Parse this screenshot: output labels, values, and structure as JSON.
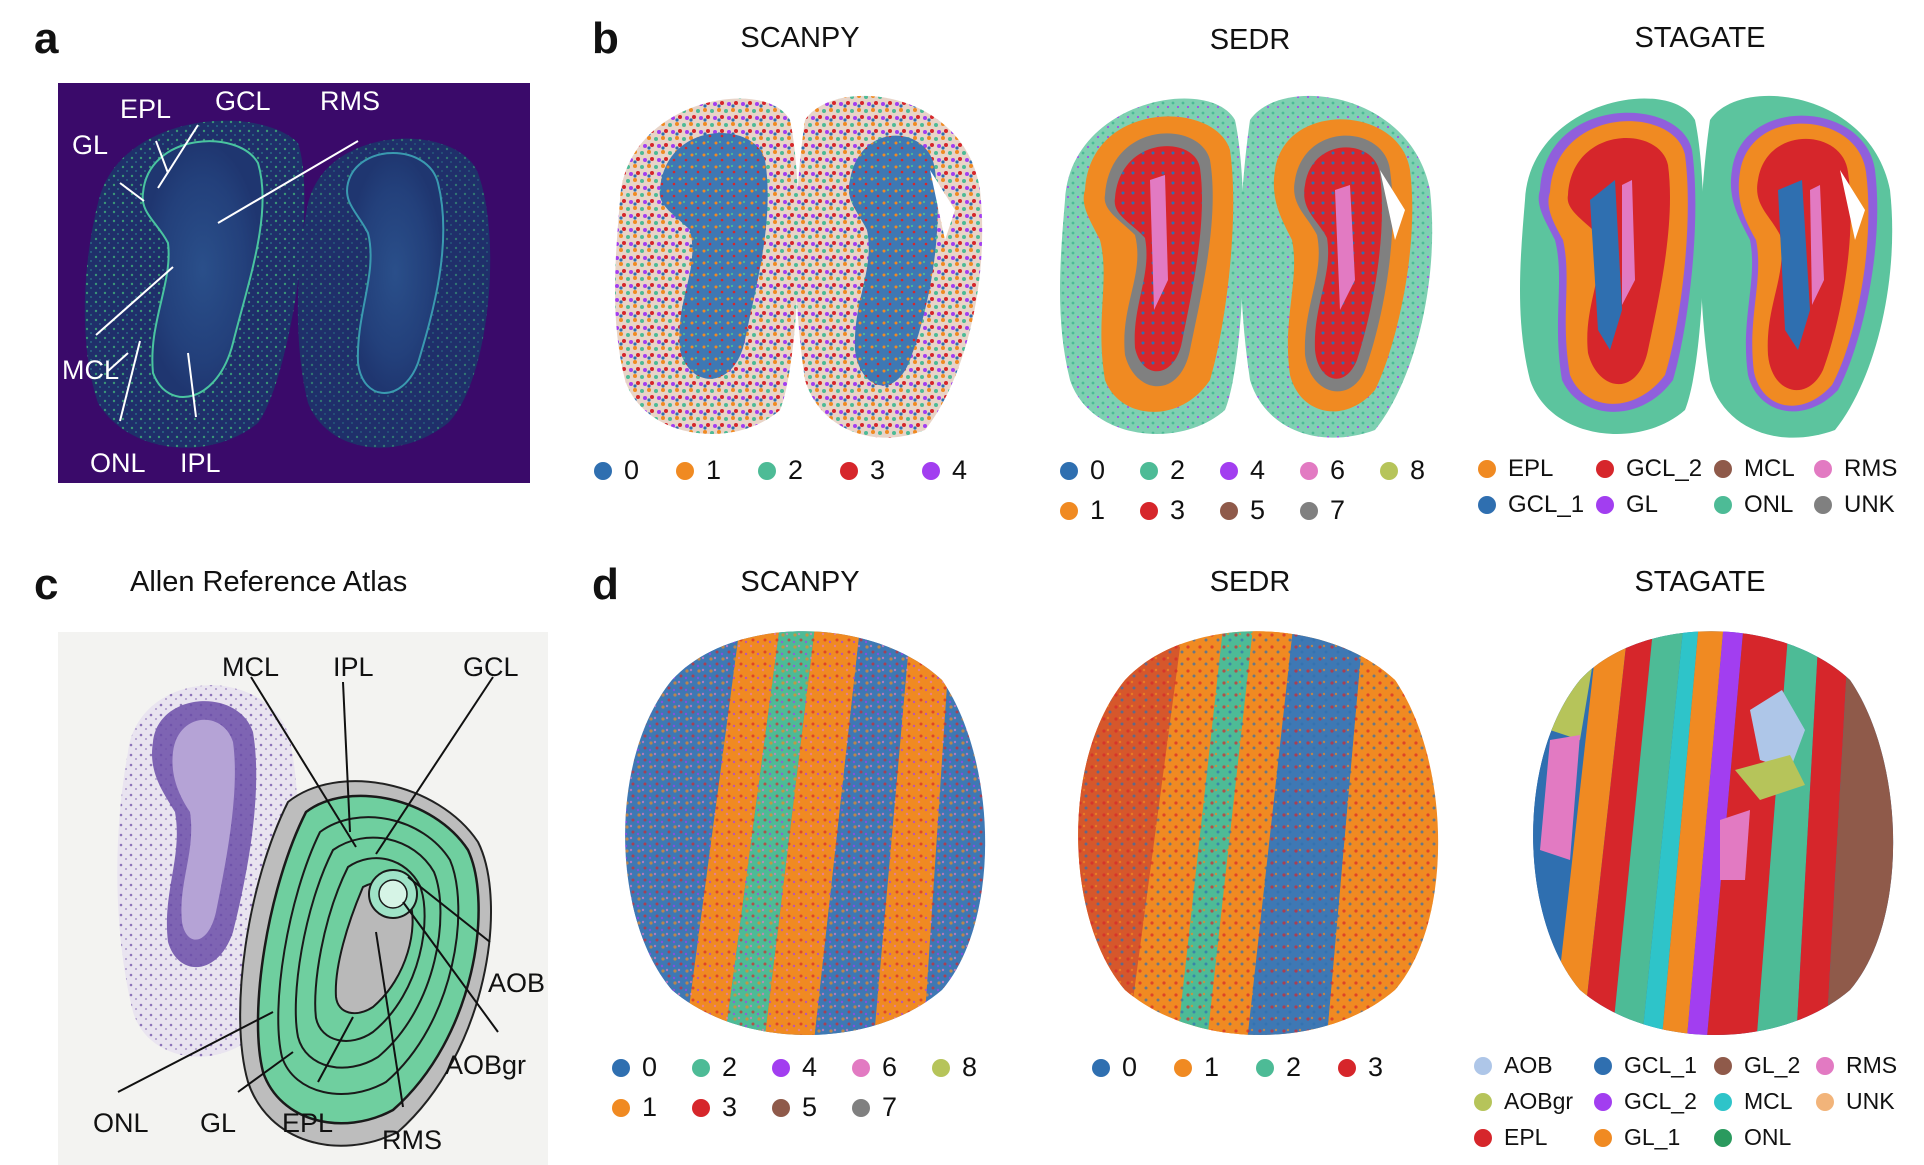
{
  "panels": {
    "a": {
      "letter": "a",
      "labels": {
        "GL": "GL",
        "EPL": "EPL",
        "GCL": "GCL",
        "RMS": "RMS",
        "MCL": "MCL",
        "ONL": "ONL",
        "IPL": "IPL"
      }
    },
    "b": {
      "letter": "b",
      "titles": [
        "SCANPY",
        "SEDR",
        "STAGATE"
      ],
      "legend_scanpy": [
        {
          "label": "0",
          "color": "#2f6fb0"
        },
        {
          "label": "1",
          "color": "#f08a22"
        },
        {
          "label": "2",
          "color": "#4dbb96"
        },
        {
          "label": "3",
          "color": "#d6262b"
        },
        {
          "label": "4",
          "color": "#a23ef0"
        }
      ],
      "legend_sedr": [
        {
          "label": "0",
          "color": "#2f6fb0"
        },
        {
          "label": "2",
          "color": "#4dbb96"
        },
        {
          "label": "4",
          "color": "#a23ef0"
        },
        {
          "label": "6",
          "color": "#e27ac2"
        },
        {
          "label": "8",
          "color": "#b6c45a"
        },
        {
          "label": "1",
          "color": "#f08a22"
        },
        {
          "label": "3",
          "color": "#d6262b"
        },
        {
          "label": "5",
          "color": "#8f5a4a"
        },
        {
          "label": "7",
          "color": "#808080"
        }
      ],
      "legend_stagate": [
        {
          "label": "EPL",
          "color": "#f08a22"
        },
        {
          "label": "GCL_2",
          "color": "#d6262b"
        },
        {
          "label": "MCL",
          "color": "#8f5a4a"
        },
        {
          "label": "RMS",
          "color": "#e27ac2"
        },
        {
          "label": "GCL_1",
          "color": "#2f6fb0"
        },
        {
          "label": "GL",
          "color": "#a23ef0"
        },
        {
          "label": "ONL",
          "color": "#4dbb96"
        },
        {
          "label": "UNK",
          "color": "#808080"
        }
      ]
    },
    "c": {
      "letter": "c",
      "title": "Allen Reference Atlas",
      "labels": {
        "MCL": "MCL",
        "IPL": "IPL",
        "GCL": "GCL",
        "AOB": "AOB",
        "AOBgr": "AOBgr",
        "RMS": "RMS",
        "EPL": "EPL",
        "GL": "GL",
        "ONL": "ONL"
      }
    },
    "d": {
      "letter": "d",
      "titles": [
        "SCANPY",
        "SEDR",
        "STAGATE"
      ],
      "legend_scanpy": [
        {
          "label": "0",
          "color": "#2f6fb0"
        },
        {
          "label": "2",
          "color": "#4dbb96"
        },
        {
          "label": "4",
          "color": "#a23ef0"
        },
        {
          "label": "6",
          "color": "#e27ac2"
        },
        {
          "label": "8",
          "color": "#b6c45a"
        },
        {
          "label": "1",
          "color": "#f08a22"
        },
        {
          "label": "3",
          "color": "#d6262b"
        },
        {
          "label": "5",
          "color": "#8f5a4a"
        },
        {
          "label": "7",
          "color": "#808080"
        }
      ],
      "legend_sedr": [
        {
          "label": "0",
          "color": "#2f6fb0"
        },
        {
          "label": "1",
          "color": "#f08a22"
        },
        {
          "label": "2",
          "color": "#4dbb96"
        },
        {
          "label": "3",
          "color": "#d6262b"
        }
      ],
      "legend_stagate": [
        {
          "label": "AOB",
          "color": "#aec6e8"
        },
        {
          "label": "GCL_1",
          "color": "#2f6fb0"
        },
        {
          "label": "GL_2",
          "color": "#8f5a4a"
        },
        {
          "label": "RMS",
          "color": "#e27ac2"
        },
        {
          "label": "AOBgr",
          "color": "#b6c45a"
        },
        {
          "label": "GCL_2",
          "color": "#a23ef0"
        },
        {
          "label": "MCL",
          "color": "#2ec4c9"
        },
        {
          "label": "UNK",
          "color": "#f2b47a"
        },
        {
          "label": "EPL",
          "color": "#d6262b"
        },
        {
          "label": "GL_1",
          "color": "#f08a22"
        },
        {
          "label": "ONL",
          "color": "#2a9a5e"
        }
      ]
    }
  }
}
